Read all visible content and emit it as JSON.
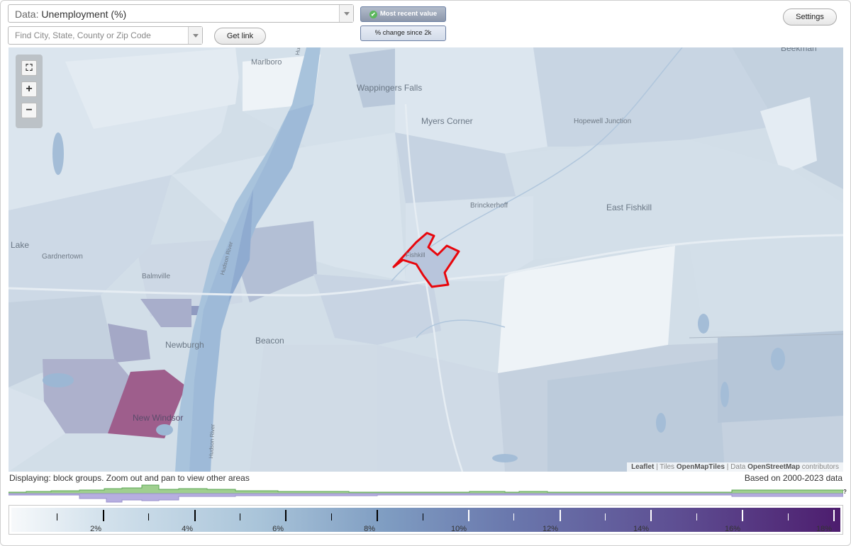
{
  "header": {
    "data_label": "Data:",
    "data_value": "Unemployment (%)",
    "search_placeholder": "Find City, State, County or Zip Code",
    "get_link": "Get link",
    "mode_recent": "Most recent value",
    "mode_change": "% change since 2k",
    "settings": "Settings"
  },
  "map": {
    "places": {
      "marlboro": "Marlboro",
      "wappingers_falls": "Wappingers Falls",
      "myers_corner": "Myers Corner",
      "hopewell_junction": "Hopewell Junction",
      "beekman": "Beekman",
      "brinckerhoff": "Brinckerhoff",
      "east_fishkill": "East Fishkill",
      "lake": "Lake",
      "gardnertown": "Gardnertown",
      "balmville": "Balmville",
      "fishkill": "Fishkill",
      "newburgh": "Newburgh",
      "beacon": "Beacon",
      "new_windsor": "New Windsor",
      "hudson_river_1": "Hudson River",
      "hudson_river_2": "Hudson River",
      "hudson_river_3": "Hudson River"
    },
    "attribution": {
      "leaflet": "Leaflet",
      "tiles_prefix": "Tiles",
      "tiles": "OpenMapTiles",
      "data_prefix": "Data",
      "data": "OpenStreetMap",
      "contributors": "contributors"
    }
  },
  "footer": {
    "display_note": "Displaying: block groups. Zoom out and pan to view other areas",
    "based_on": "Based on 2000-2023 data",
    "unknown": "?"
  },
  "legend": {
    "ticks": [
      "2%",
      "4%",
      "6%",
      "8%",
      "10%",
      "12%",
      "14%",
      "16%",
      "18%"
    ],
    "range": [
      0,
      18
    ]
  }
}
